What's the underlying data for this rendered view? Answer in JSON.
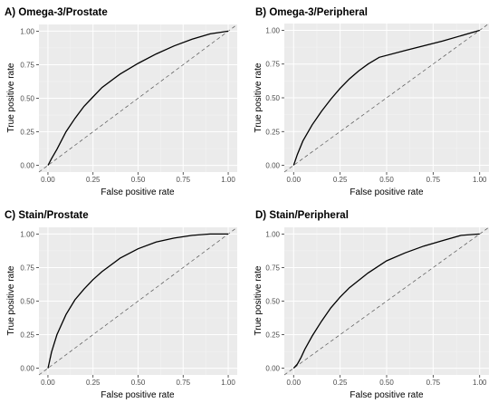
{
  "chart_data": [
    {
      "type": "line",
      "title": "A) Omega-3/Prostate",
      "xlabel": "False positive rate",
      "ylabel": "True positive rate",
      "xlim": [
        0,
        1
      ],
      "ylim": [
        0,
        1
      ],
      "xticks": [
        "0.00",
        "0.25",
        "0.50",
        "0.75",
        "1.00"
      ],
      "yticks": [
        "0.00",
        "0.25",
        "0.50",
        "0.75",
        "1.00"
      ],
      "grid": true,
      "reference_line": "dashed diagonal",
      "series": [
        {
          "x": [
            0,
            0.02,
            0.05,
            0.1,
            0.15,
            0.2,
            0.25,
            0.3,
            0.4,
            0.5,
            0.6,
            0.7,
            0.8,
            0.9,
            1.0
          ],
          "y": [
            0,
            0.05,
            0.12,
            0.25,
            0.35,
            0.44,
            0.51,
            0.58,
            0.68,
            0.76,
            0.83,
            0.89,
            0.94,
            0.98,
            1.0
          ]
        }
      ]
    },
    {
      "type": "line",
      "title": "B) Omega-3/Peripheral",
      "xlabel": "False positive rate",
      "ylabel": "True positive rate",
      "xlim": [
        0,
        1
      ],
      "ylim": [
        0,
        1
      ],
      "xticks": [
        "0.00",
        "0.25",
        "0.50",
        "0.75",
        "1.00"
      ],
      "yticks": [
        "0.00",
        "0.25",
        "0.50",
        "0.75",
        "1.00"
      ],
      "grid": true,
      "reference_line": "dashed diagonal",
      "series": [
        {
          "x": [
            0,
            0.02,
            0.05,
            0.1,
            0.15,
            0.2,
            0.25,
            0.3,
            0.35,
            0.4,
            0.46,
            0.6,
            0.8,
            1.0
          ],
          "y": [
            0,
            0.08,
            0.18,
            0.3,
            0.4,
            0.49,
            0.57,
            0.64,
            0.7,
            0.75,
            0.8,
            0.85,
            0.92,
            1.0
          ]
        }
      ]
    },
    {
      "type": "line",
      "title": "C) Stain/Prostate",
      "xlabel": "False positive rate",
      "ylabel": "True positive rate",
      "xlim": [
        0,
        1
      ],
      "ylim": [
        0,
        1
      ],
      "xticks": [
        "0.00",
        "0.25",
        "0.50",
        "0.75",
        "1.00"
      ],
      "yticks": [
        "0.00",
        "0.25",
        "0.50",
        "0.75",
        "1.00"
      ],
      "grid": true,
      "reference_line": "dashed diagonal",
      "series": [
        {
          "x": [
            0,
            0.02,
            0.05,
            0.1,
            0.15,
            0.2,
            0.25,
            0.3,
            0.4,
            0.5,
            0.6,
            0.7,
            0.8,
            0.9,
            1.0
          ],
          "y": [
            0,
            0.12,
            0.25,
            0.4,
            0.51,
            0.59,
            0.66,
            0.72,
            0.82,
            0.89,
            0.94,
            0.97,
            0.99,
            1.0,
            1.0
          ]
        }
      ]
    },
    {
      "type": "line",
      "title": "D) Stain/Peripheral",
      "xlabel": "False positive rate",
      "ylabel": "True positive rate",
      "xlim": [
        0,
        1
      ],
      "ylim": [
        0,
        1
      ],
      "xticks": [
        "0.00",
        "0.25",
        "0.50",
        "0.75",
        "1.00"
      ],
      "yticks": [
        "0.00",
        "0.25",
        "0.50",
        "0.75",
        "1.00"
      ],
      "grid": true,
      "reference_line": "dashed diagonal",
      "series": [
        {
          "x": [
            0,
            0.02,
            0.04,
            0.06,
            0.1,
            0.15,
            0.2,
            0.25,
            0.3,
            0.4,
            0.5,
            0.6,
            0.7,
            0.8,
            0.9,
            1.0
          ],
          "y": [
            0,
            0.03,
            0.08,
            0.14,
            0.24,
            0.35,
            0.45,
            0.53,
            0.6,
            0.71,
            0.8,
            0.86,
            0.91,
            0.95,
            0.99,
            1.0
          ]
        }
      ]
    }
  ]
}
